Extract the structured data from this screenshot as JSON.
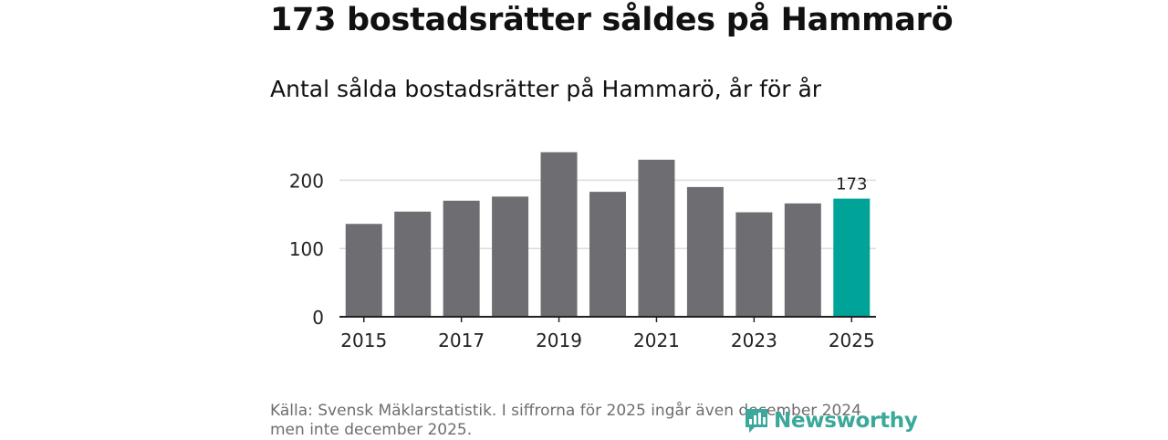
{
  "colors": {
    "bar": "#6e6d72",
    "highlight": "#00a398",
    "grid": "#dcdcdc",
    "axis": "#222222",
    "brand": "#3aa89a"
  },
  "chart_data": {
    "type": "bar",
    "title": "173 bostadsrätter såldes på Hammarö",
    "subtitle": "Antal sålda bostadsrätter på Hammarö, år för år",
    "categories": [
      "2015",
      "2016",
      "2017",
      "2018",
      "2019",
      "2020",
      "2021",
      "2022",
      "2023",
      "2024",
      "2025"
    ],
    "values": [
      136,
      154,
      170,
      176,
      241,
      183,
      230,
      190,
      153,
      166,
      173
    ],
    "highlight_index": 10,
    "data_labels": [
      {
        "index": 10,
        "text": "173"
      }
    ],
    "x_tick_labels": [
      "2015",
      "2017",
      "2019",
      "2021",
      "2023",
      "2025"
    ],
    "y_ticks": [
      0,
      100,
      200
    ],
    "ylim": [
      0,
      250
    ],
    "xlabel": "",
    "ylabel": "",
    "grid": true
  },
  "footer": {
    "source": "Källa: Svensk Mäklarstatistik. I siffrorna för 2025 ingår även december 2024 men inte december 2025.",
    "brand": "Newsworthy",
    "brand_icon": "bar-chart-bubble-icon"
  }
}
